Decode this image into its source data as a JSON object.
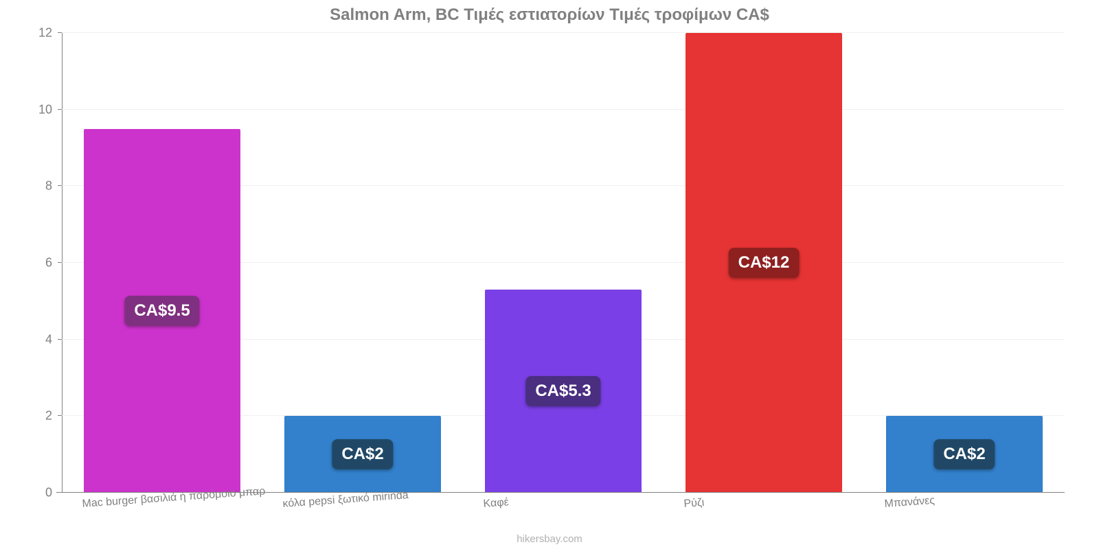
{
  "chart": {
    "type": "bar",
    "title": "Salmon Arm, BC Τιμές εστιατορίων Τιμές τροφίμων CA$",
    "title_fontsize": 24,
    "title_color": "#808080",
    "background_color": "#ffffff",
    "grid_color": "#f0f0f0",
    "axis_color": "#808080",
    "tick_label_color": "#808080",
    "tick_fontsize": 18,
    "xlabel_fontsize": 16,
    "xlabel_rotation_deg": -4,
    "ylim": [
      0,
      12
    ],
    "ytick_step": 2,
    "yticks": [
      0,
      2,
      4,
      6,
      8,
      10,
      12
    ],
    "bar_width_pct": 78,
    "categories": [
      "Mac burger βασιλιά ή παρόμοιο μπαρ",
      "κόλα pepsi ξωτικό mirinda",
      "Καφέ",
      "Ρύζι",
      "Μπανάνες"
    ],
    "values": [
      9.5,
      2,
      5.3,
      12,
      2
    ],
    "value_labels": [
      "CA$9.5",
      "CA$2",
      "CA$5.3",
      "CA$12",
      "CA$2"
    ],
    "bar_colors": [
      "#cc33cc",
      "#3380cc",
      "#7a3fe6",
      "#e63333",
      "#3380cc"
    ],
    "badge_colors": [
      "#803080",
      "#204866",
      "#4a2e80",
      "#8f2020",
      "#204866"
    ],
    "badge_text_color": "#ffffff",
    "badge_fontsize": 24,
    "credit": "hikersbay.com",
    "credit_color": "#b0b0b0",
    "credit_fontsize": 15
  }
}
